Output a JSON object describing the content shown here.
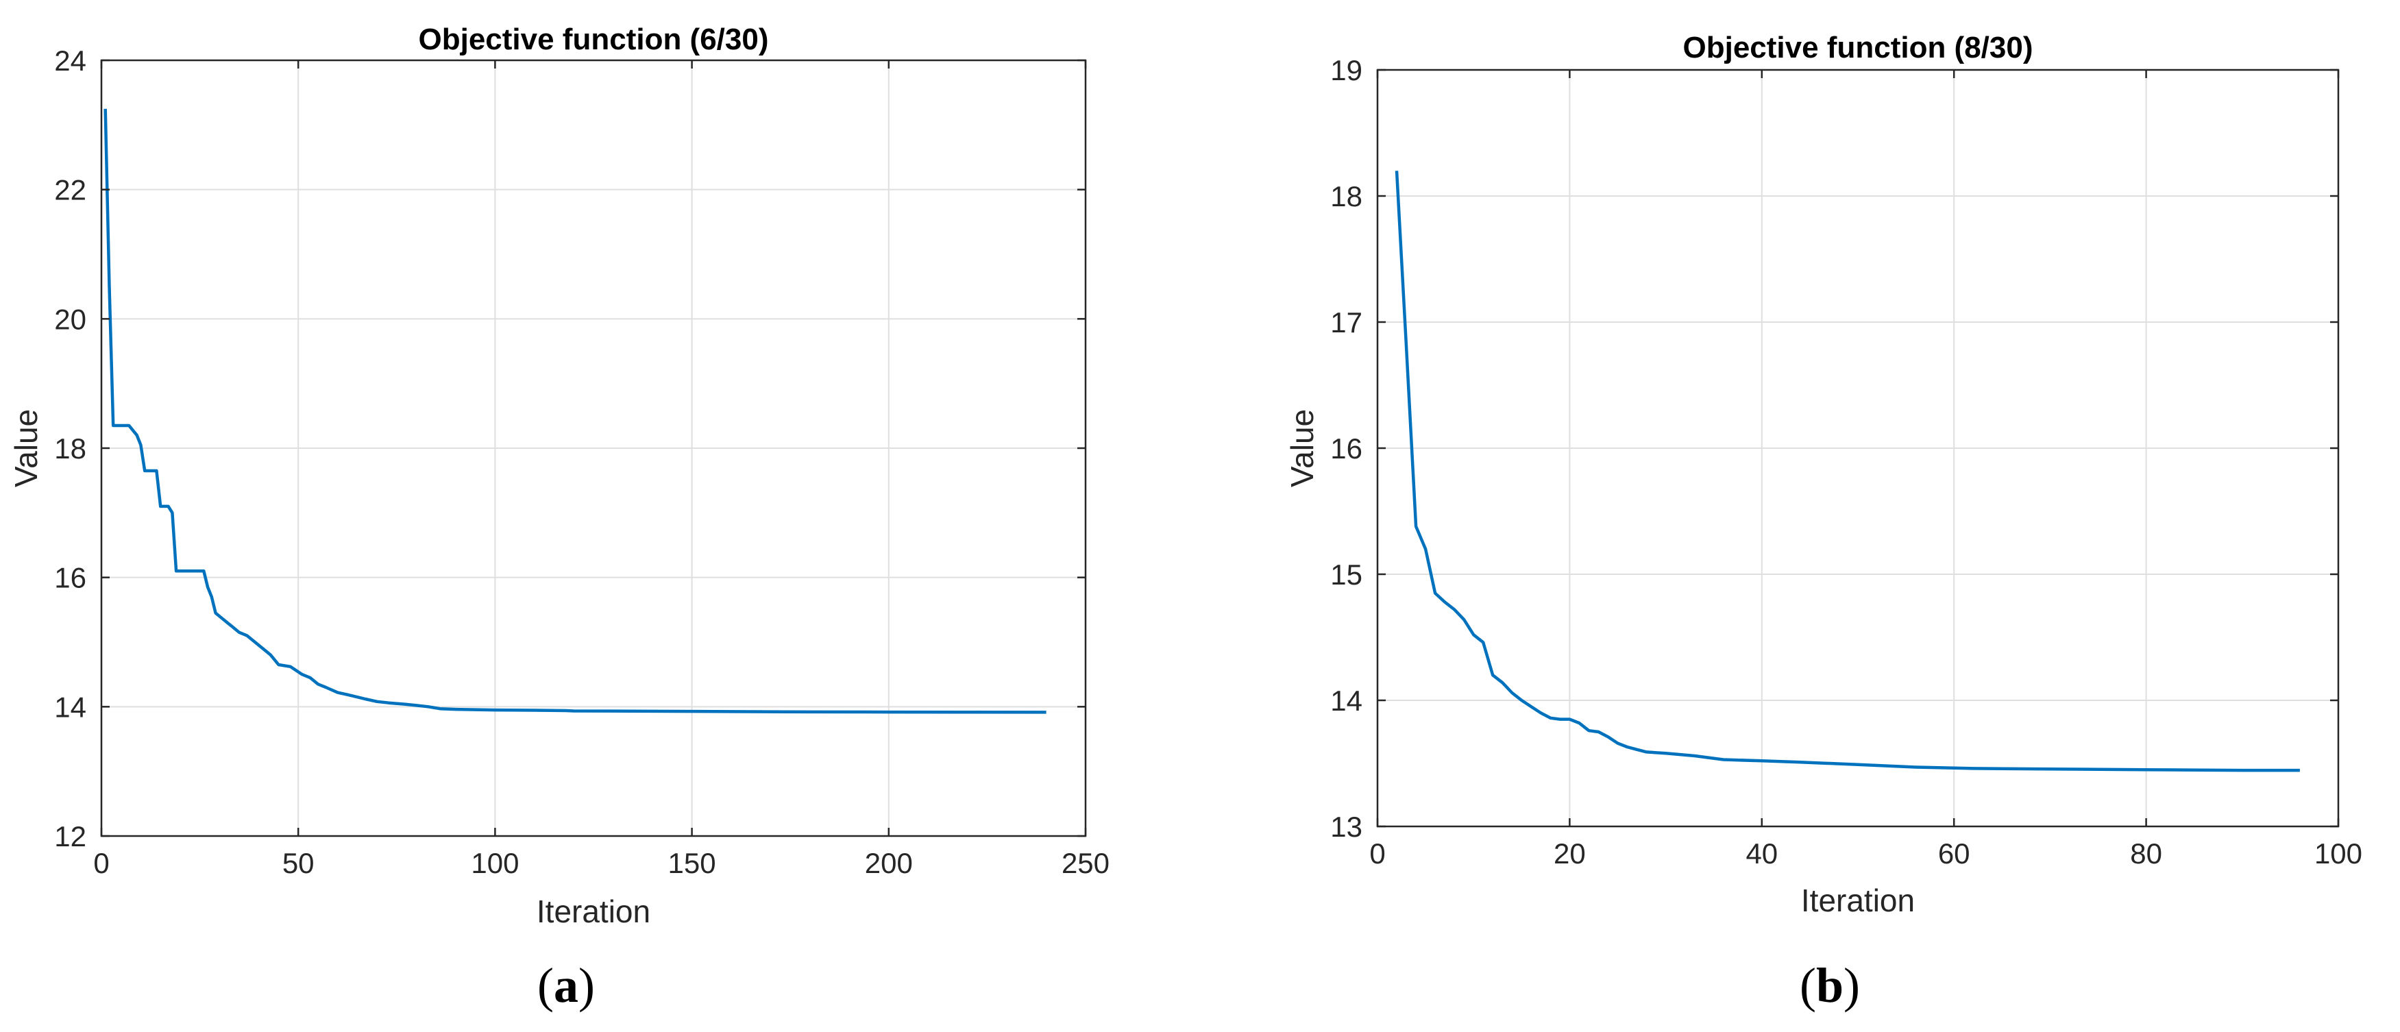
{
  "chart_data": [
    {
      "panel": "(a)",
      "panel_letter": "a",
      "type": "line",
      "title": "Objective function (6/30)",
      "xlabel": "Iteration",
      "ylabel": "Value",
      "xlim": [
        0,
        250
      ],
      "ylim": [
        12,
        24
      ],
      "xticks": [
        0,
        50,
        100,
        150,
        200,
        250
      ],
      "yticks": [
        12,
        14,
        16,
        18,
        20,
        22,
        24
      ],
      "grid": true,
      "color": "#0072bd",
      "series": [
        {
          "x": [
            1,
            2,
            3,
            7,
            9,
            10,
            11,
            14,
            15,
            17,
            18,
            19,
            26,
            27,
            28,
            29,
            30,
            32,
            33,
            35,
            37,
            39,
            41,
            43,
            45,
            48,
            51,
            53,
            55,
            57,
            60,
            63,
            67,
            70,
            73,
            77,
            80,
            83,
            86,
            90,
            95,
            100,
            110,
            118,
            120,
            140,
            160,
            180,
            200,
            220,
            240
          ],
          "y": [
            23.25,
            20.5,
            18.35,
            18.35,
            18.2,
            18.05,
            17.65,
            17.65,
            17.1,
            17.1,
            17.0,
            16.1,
            16.1,
            15.85,
            15.7,
            15.45,
            15.4,
            15.3,
            15.25,
            15.15,
            15.1,
            15.0,
            14.9,
            14.8,
            14.65,
            14.62,
            14.5,
            14.45,
            14.35,
            14.3,
            14.22,
            14.18,
            14.12,
            14.08,
            14.06,
            14.04,
            14.02,
            14.0,
            13.97,
            13.96,
            13.955,
            13.95,
            13.945,
            13.94,
            13.935,
            13.93,
            13.925,
            13.92,
            13.918,
            13.916,
            13.915
          ]
        }
      ]
    },
    {
      "panel": "(b)",
      "panel_letter": "b",
      "type": "line",
      "title": "Objective function (8/30)",
      "xlabel": "Iteration",
      "ylabel": "Value",
      "xlim": [
        0,
        100
      ],
      "ylim": [
        13,
        19
      ],
      "xticks": [
        0,
        20,
        40,
        60,
        80,
        100
      ],
      "yticks": [
        13,
        14,
        15,
        16,
        17,
        18,
        19
      ],
      "grid": true,
      "color": "#0072bd",
      "series": [
        {
          "x": [
            2,
            3,
            4,
            5,
            6,
            7,
            8,
            9,
            10,
            11,
            12,
            13,
            14,
            15,
            16,
            17,
            18,
            19,
            20,
            21,
            22,
            23,
            24,
            25,
            26,
            27,
            28,
            30,
            33,
            36,
            40,
            44,
            50,
            56,
            62,
            70,
            80,
            90,
            96
          ],
          "y": [
            18.2,
            16.8,
            15.38,
            15.2,
            14.85,
            14.78,
            14.72,
            14.64,
            14.52,
            14.46,
            14.2,
            14.14,
            14.06,
            14.0,
            13.95,
            13.9,
            13.86,
            13.85,
            13.85,
            13.82,
            13.76,
            13.75,
            13.71,
            13.66,
            13.63,
            13.61,
            13.59,
            13.58,
            13.56,
            13.53,
            13.52,
            13.51,
            13.49,
            13.47,
            13.46,
            13.455,
            13.45,
            13.445,
            13.445
          ]
        }
      ]
    }
  ]
}
